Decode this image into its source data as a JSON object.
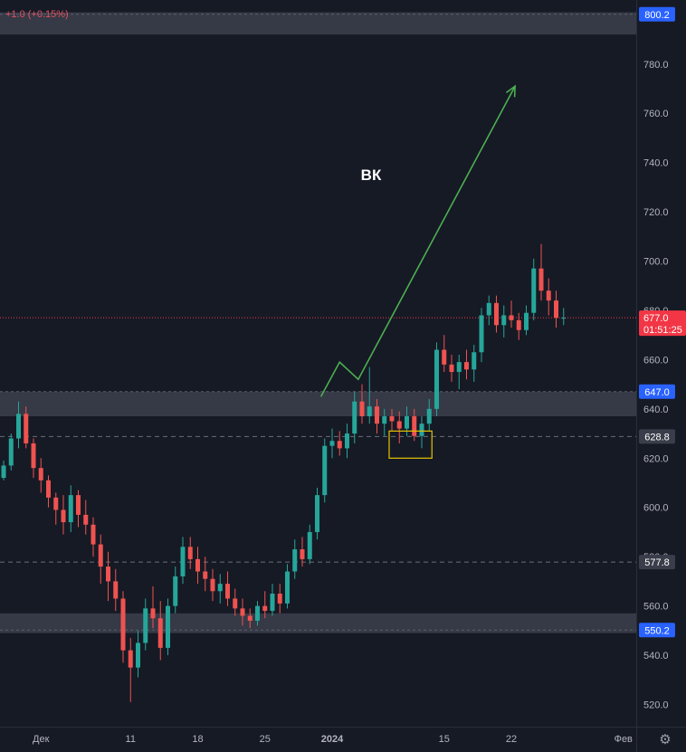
{
  "header": {
    "change": "+1.0 (+0.15%)"
  },
  "chart_data": {
    "type": "candlestick",
    "ticker_label": "ВК",
    "y_axis": {
      "range": [
        511,
        806
      ],
      "ticks": [
        "520.0",
        "540.0",
        "560.0",
        "580.0",
        "600.0",
        "620.0",
        "640.0",
        "660.0",
        "680.0",
        "700.0",
        "720.0",
        "740.0",
        "760.0",
        "780.0"
      ]
    },
    "x_axis": {
      "labels": [
        {
          "text": "Дек",
          "bar": 5
        },
        {
          "text": "11",
          "bar": 17
        },
        {
          "text": "18",
          "bar": 26
        },
        {
          "text": "25",
          "bar": 35
        },
        {
          "text": "2024",
          "bar": 44
        },
        {
          "text": "15",
          "bar": 59
        },
        {
          "text": "22",
          "bar": 68
        },
        {
          "text": "Фев",
          "bar": 83
        }
      ]
    },
    "price_lines": [
      {
        "value": 800.2,
        "style": "zone",
        "color": "#2962ff"
      },
      {
        "value": 647.0,
        "style": "zone",
        "color": "#2962ff"
      },
      {
        "value": 628.8,
        "style": "dashed",
        "color": "#3a3e4a"
      },
      {
        "value": 577.8,
        "style": "dashed",
        "color": "#3a3e4a"
      },
      {
        "value": 550.2,
        "style": "zone",
        "color": "#2962ff"
      }
    ],
    "zones": [
      {
        "from": 792,
        "to": 801
      },
      {
        "from": 637,
        "to": 647
      },
      {
        "from": 549,
        "to": 557
      }
    ],
    "last_price": {
      "value": 677.0,
      "label": "677.0",
      "countdown": "01:51:25",
      "color": "#f23645"
    },
    "annotation_box": {
      "bar_from": 52,
      "bar_to": 57,
      "low": 620,
      "high": 631
    },
    "projection_arrow": [
      [
        42.5,
        645
      ],
      [
        45,
        659
      ],
      [
        47.5,
        652
      ],
      [
        68.5,
        771
      ]
    ],
    "candles": [
      [
        612,
        619,
        611,
        617
      ],
      [
        617,
        630,
        615,
        628
      ],
      [
        628,
        643,
        624,
        638
      ],
      [
        638,
        641,
        624,
        626
      ],
      [
        626,
        628,
        612,
        616
      ],
      [
        616,
        620,
        606,
        611
      ],
      [
        611,
        613,
        600,
        604
      ],
      [
        604,
        606,
        593,
        599
      ],
      [
        599,
        605,
        589,
        594
      ],
      [
        594,
        609,
        590,
        605
      ],
      [
        605,
        607,
        592,
        597
      ],
      [
        597,
        603,
        589,
        593
      ],
      [
        593,
        596,
        580,
        585
      ],
      [
        585,
        589,
        569,
        576
      ],
      [
        576,
        582,
        562,
        570
      ],
      [
        570,
        575,
        558,
        563
      ],
      [
        563,
        566,
        537,
        542
      ],
      [
        542,
        547,
        521,
        535
      ],
      [
        535,
        550,
        531,
        545
      ],
      [
        545,
        563,
        542,
        559
      ],
      [
        559,
        568,
        551,
        555
      ],
      [
        555,
        562,
        538,
        543
      ],
      [
        543,
        563,
        540,
        560
      ],
      [
        560,
        576,
        557,
        572
      ],
      [
        572,
        588,
        569,
        584
      ],
      [
        584,
        588,
        575,
        579
      ],
      [
        579,
        584,
        569,
        574
      ],
      [
        574,
        580,
        566,
        571
      ],
      [
        571,
        575,
        562,
        566
      ],
      [
        566,
        573,
        561,
        569
      ],
      [
        569,
        574,
        560,
        563
      ],
      [
        563,
        567,
        556,
        559
      ],
      [
        559,
        563,
        552,
        556
      ],
      [
        556,
        559,
        551,
        554
      ],
      [
        554,
        562,
        552,
        560
      ],
      [
        560,
        566,
        555,
        558
      ],
      [
        558,
        569,
        556,
        565
      ],
      [
        565,
        569,
        557,
        561
      ],
      [
        561,
        577,
        559,
        574
      ],
      [
        574,
        587,
        571,
        583
      ],
      [
        583,
        588,
        576,
        579
      ],
      [
        579,
        593,
        577,
        590
      ],
      [
        590,
        608,
        587,
        605
      ],
      [
        605,
        628,
        602,
        625
      ],
      [
        625,
        632,
        620,
        627
      ],
      [
        627,
        631,
        621,
        624
      ],
      [
        624,
        634,
        620,
        630
      ],
      [
        630,
        647,
        626,
        643
      ],
      [
        643,
        650,
        634,
        637
      ],
      [
        637,
        657,
        634,
        641
      ],
      [
        641,
        644,
        630,
        634
      ],
      [
        634,
        640,
        629,
        637
      ],
      [
        637,
        640,
        631,
        635
      ],
      [
        635,
        639,
        626,
        632
      ],
      [
        632,
        641,
        629,
        637
      ],
      [
        637,
        640,
        627,
        629
      ],
      [
        629,
        637,
        624,
        634
      ],
      [
        634,
        644,
        631,
        640
      ],
      [
        640,
        667,
        637,
        664
      ],
      [
        664,
        670,
        655,
        658
      ],
      [
        658,
        662,
        651,
        655
      ],
      [
        655,
        662,
        648,
        659
      ],
      [
        659,
        664,
        652,
        656
      ],
      [
        656,
        666,
        651,
        663
      ],
      [
        663,
        681,
        659,
        678
      ],
      [
        678,
        686,
        674,
        683
      ],
      [
        683,
        686,
        671,
        674
      ],
      [
        674,
        682,
        669,
        678
      ],
      [
        678,
        684,
        673,
        676
      ],
      [
        676,
        679,
        668,
        672
      ],
      [
        672,
        682,
        670,
        679
      ],
      [
        679,
        701,
        676,
        697
      ],
      [
        697,
        707,
        684,
        688
      ],
      [
        688,
        693,
        678,
        684
      ],
      [
        684,
        688,
        673,
        677
      ],
      [
        677,
        681,
        674,
        677
      ]
    ]
  }
}
